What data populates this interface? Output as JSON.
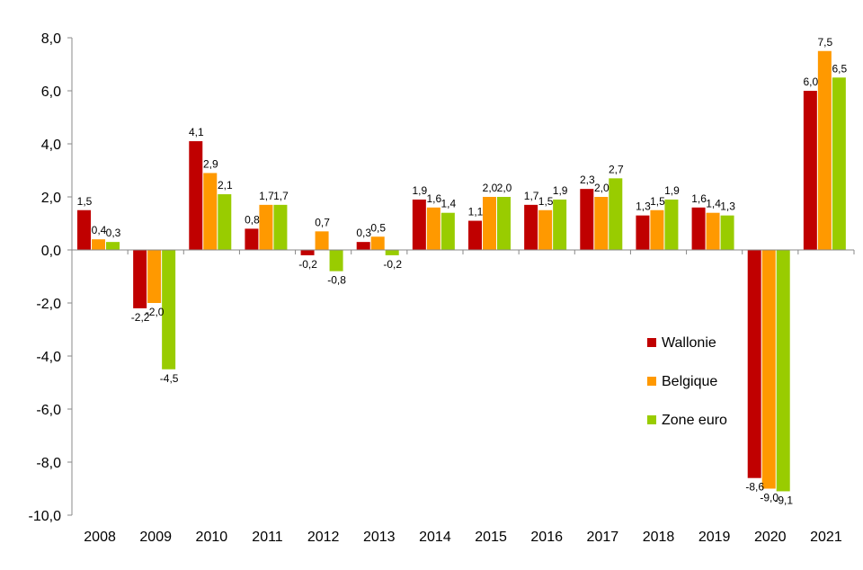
{
  "chart_data": {
    "type": "bar",
    "categories": [
      "2008",
      "2009",
      "2010",
      "2011",
      "2012",
      "2013",
      "2014",
      "2015",
      "2016",
      "2017",
      "2018",
      "2019",
      "2020",
      "2021"
    ],
    "series": [
      {
        "name": "Wallonie",
        "color": "#c00000",
        "values": [
          1.5,
          -2.2,
          4.1,
          0.8,
          -0.2,
          0.3,
          1.9,
          1.1,
          1.7,
          2.3,
          1.3,
          1.6,
          -8.6,
          6.0
        ],
        "labels": [
          "1,5",
          "-2,2",
          "4,1",
          "0,8",
          "-0,2",
          "0,3",
          "1,9",
          "1,1",
          "1,7",
          "2,3",
          "1,3",
          "1,6",
          "-8,6",
          "6,0"
        ]
      },
      {
        "name": "Belgique",
        "color": "#ff9900",
        "values": [
          0.4,
          -2.0,
          2.9,
          1.7,
          0.7,
          0.5,
          1.6,
          2.0,
          1.5,
          2.0,
          1.5,
          1.4,
          -9.0,
          7.5
        ],
        "labels": [
          "0,4",
          "-2,0",
          "2,9",
          "1,7",
          "0,7",
          "0,5",
          "1,6",
          "2,0",
          "1,5",
          "2,0",
          "1,5",
          "1,4",
          "-9,0",
          "7,5"
        ]
      },
      {
        "name": "Zone euro",
        "color": "#99cc00",
        "values": [
          0.3,
          -4.5,
          2.1,
          1.7,
          -0.8,
          -0.2,
          1.4,
          2.0,
          1.9,
          2.7,
          1.9,
          1.3,
          -9.1,
          6.5
        ],
        "labels": [
          "0,3",
          "-4,5",
          "2,1",
          "1,7",
          "-0,8",
          "-0,2",
          "1,4",
          "2,0",
          "1,9",
          "2,7",
          "1,9",
          "1,3",
          "-9,1",
          "6,5"
        ]
      }
    ],
    "y_ticks": [
      "8,0",
      "6,0",
      "4,0",
      "2,0",
      "0,0",
      "-2,0",
      "-4,0",
      "-6,0",
      "-8,0",
      "-10,0"
    ],
    "ylim": [
      -10,
      8
    ],
    "grid": false,
    "legend_position": "right"
  }
}
